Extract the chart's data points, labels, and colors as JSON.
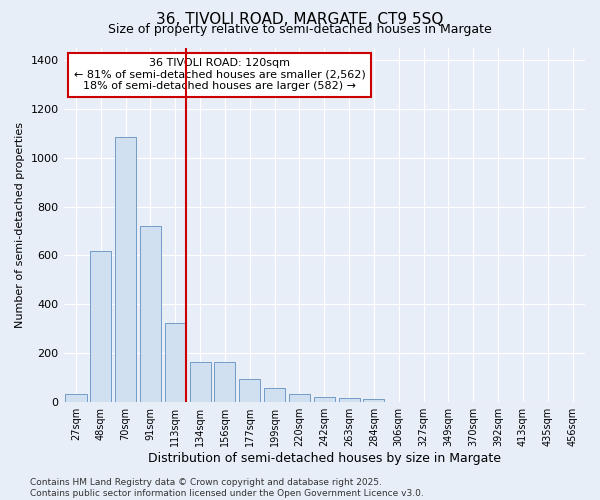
{
  "title1": "36, TIVOLI ROAD, MARGATE, CT9 5SQ",
  "title2": "Size of property relative to semi-detached houses in Margate",
  "xlabel": "Distribution of semi-detached houses by size in Margate",
  "ylabel": "Number of semi-detached properties",
  "categories": [
    "27sqm",
    "48sqm",
    "70sqm",
    "91sqm",
    "113sqm",
    "134sqm",
    "156sqm",
    "177sqm",
    "199sqm",
    "220sqm",
    "242sqm",
    "263sqm",
    "284sqm",
    "306sqm",
    "327sqm",
    "349sqm",
    "370sqm",
    "392sqm",
    "413sqm",
    "435sqm",
    "456sqm"
  ],
  "values": [
    35,
    620,
    1085,
    720,
    325,
    165,
    165,
    95,
    60,
    35,
    22,
    17,
    12,
    0,
    0,
    0,
    0,
    0,
    0,
    0,
    0
  ],
  "bar_color": "#d0e0f0",
  "bar_edge_color": "#6090c0",
  "vline_color": "#cc0000",
  "vline_x_index": 4,
  "annotation_text": "36 TIVOLI ROAD: 120sqm\n← 81% of semi-detached houses are smaller (2,562)\n18% of semi-detached houses are larger (582) →",
  "annotation_box_color": "#ffffff",
  "annotation_box_edge_color": "#cc0000",
  "ylim": [
    0,
    1450
  ],
  "yticks": [
    0,
    200,
    400,
    600,
    800,
    1000,
    1200,
    1400
  ],
  "background_color": "#e8eef8",
  "grid_color": "#ffffff",
  "footer_text": "Contains HM Land Registry data © Crown copyright and database right 2025.\nContains public sector information licensed under the Open Government Licence v3.0.",
  "title1_fontsize": 11,
  "title2_fontsize": 9,
  "xlabel_fontsize": 9,
  "ylabel_fontsize": 8,
  "ytick_fontsize": 8,
  "xtick_fontsize": 7,
  "annotation_fontsize": 8,
  "footer_fontsize": 6.5
}
